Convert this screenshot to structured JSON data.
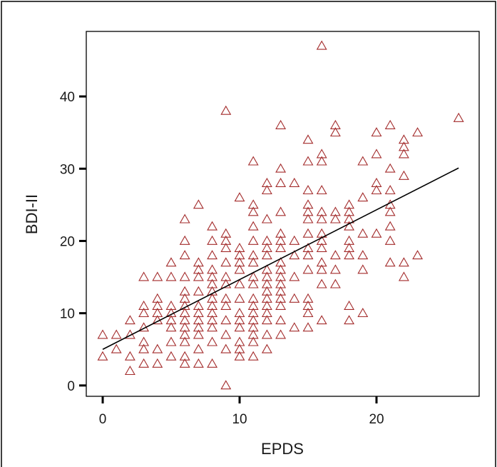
{
  "chart_data": {
    "type": "scatter",
    "title": "",
    "xlabel": "EPDS",
    "ylabel": "BDI-II",
    "xlim": [
      -1.2,
      27.5
    ],
    "ylim": [
      -1.5,
      49
    ],
    "x_ticks": [
      0,
      10,
      20
    ],
    "y_ticks": [
      0,
      10,
      20,
      30,
      40
    ],
    "grid": false,
    "legend": "none",
    "marker": "triangle-open",
    "marker_color": "#a32b2b",
    "fit_line": {
      "color": "#000000",
      "x": [
        0,
        26
      ],
      "y": [
        5,
        30.1
      ]
    },
    "points": [
      [
        0,
        7
      ],
      [
        0,
        4
      ],
      [
        1,
        7
      ],
      [
        1,
        5
      ],
      [
        2,
        9
      ],
      [
        2,
        7
      ],
      [
        2,
        4
      ],
      [
        2,
        2
      ],
      [
        3,
        15
      ],
      [
        3,
        11
      ],
      [
        3,
        10
      ],
      [
        3,
        8
      ],
      [
        3,
        6
      ],
      [
        3,
        5
      ],
      [
        3,
        3
      ],
      [
        4,
        15
      ],
      [
        4,
        12
      ],
      [
        4,
        11
      ],
      [
        4,
        10
      ],
      [
        4,
        9
      ],
      [
        4,
        5
      ],
      [
        4,
        3
      ],
      [
        5,
        17
      ],
      [
        5,
        15
      ],
      [
        5,
        11
      ],
      [
        5,
        10
      ],
      [
        5,
        9
      ],
      [
        5,
        8
      ],
      [
        5,
        6
      ],
      [
        5,
        4
      ],
      [
        6,
        23
      ],
      [
        6,
        20
      ],
      [
        6,
        18
      ],
      [
        6,
        15
      ],
      [
        6,
        13
      ],
      [
        6,
        12
      ],
      [
        6,
        11
      ],
      [
        6,
        10
      ],
      [
        6,
        9
      ],
      [
        6,
        8
      ],
      [
        6,
        7
      ],
      [
        6,
        6
      ],
      [
        6,
        4
      ],
      [
        6,
        3
      ],
      [
        7,
        25
      ],
      [
        7,
        17
      ],
      [
        7,
        16
      ],
      [
        7,
        15
      ],
      [
        7,
        13
      ],
      [
        7,
        11
      ],
      [
        7,
        10
      ],
      [
        7,
        9
      ],
      [
        7,
        8
      ],
      [
        7,
        7
      ],
      [
        7,
        5
      ],
      [
        7,
        3
      ],
      [
        8,
        22
      ],
      [
        8,
        20
      ],
      [
        8,
        18
      ],
      [
        8,
        16
      ],
      [
        8,
        15
      ],
      [
        8,
        14
      ],
      [
        8,
        13
      ],
      [
        8,
        12
      ],
      [
        8,
        11
      ],
      [
        8,
        10
      ],
      [
        8,
        9
      ],
      [
        8,
        8
      ],
      [
        8,
        6
      ],
      [
        8,
        3
      ],
      [
        9,
        38
      ],
      [
        9,
        21
      ],
      [
        9,
        20
      ],
      [
        9,
        19
      ],
      [
        9,
        17
      ],
      [
        9,
        15
      ],
      [
        9,
        14
      ],
      [
        9,
        12
      ],
      [
        9,
        11
      ],
      [
        9,
        9
      ],
      [
        9,
        7
      ],
      [
        9,
        5
      ],
      [
        9,
        0
      ],
      [
        10,
        26
      ],
      [
        10,
        19
      ],
      [
        10,
        18
      ],
      [
        10,
        17
      ],
      [
        10,
        16
      ],
      [
        10,
        14
      ],
      [
        10,
        12
      ],
      [
        10,
        10
      ],
      [
        10,
        9
      ],
      [
        10,
        8
      ],
      [
        10,
        6
      ],
      [
        10,
        5
      ],
      [
        10,
        4
      ],
      [
        11,
        31
      ],
      [
        11,
        25
      ],
      [
        11,
        24
      ],
      [
        11,
        22
      ],
      [
        11,
        20
      ],
      [
        11,
        18
      ],
      [
        11,
        17
      ],
      [
        11,
        15
      ],
      [
        11,
        14
      ],
      [
        11,
        12
      ],
      [
        11,
        11
      ],
      [
        11,
        10
      ],
      [
        11,
        9
      ],
      [
        11,
        8
      ],
      [
        11,
        7
      ],
      [
        11,
        6
      ],
      [
        11,
        4
      ],
      [
        12,
        28
      ],
      [
        12,
        27
      ],
      [
        12,
        23
      ],
      [
        12,
        20
      ],
      [
        12,
        19
      ],
      [
        12,
        18
      ],
      [
        12,
        16
      ],
      [
        12,
        15
      ],
      [
        12,
        14
      ],
      [
        12,
        13
      ],
      [
        12,
        12
      ],
      [
        12,
        11
      ],
      [
        12,
        10
      ],
      [
        12,
        9
      ],
      [
        12,
        7
      ],
      [
        12,
        5
      ],
      [
        13,
        36
      ],
      [
        13,
        30
      ],
      [
        13,
        28
      ],
      [
        13,
        24
      ],
      [
        13,
        21
      ],
      [
        13,
        20
      ],
      [
        13,
        19
      ],
      [
        13,
        17
      ],
      [
        13,
        16
      ],
      [
        13,
        15
      ],
      [
        13,
        14
      ],
      [
        13,
        13
      ],
      [
        13,
        12
      ],
      [
        13,
        11
      ],
      [
        13,
        9
      ],
      [
        13,
        7
      ],
      [
        14,
        28
      ],
      [
        14,
        20
      ],
      [
        14,
        18
      ],
      [
        14,
        15
      ],
      [
        14,
        12
      ],
      [
        14,
        8
      ],
      [
        15,
        34
      ],
      [
        15,
        31
      ],
      [
        15,
        27
      ],
      [
        15,
        25
      ],
      [
        15,
        24
      ],
      [
        15,
        23
      ],
      [
        15,
        21
      ],
      [
        15,
        19
      ],
      [
        15,
        18
      ],
      [
        15,
        16
      ],
      [
        15,
        12
      ],
      [
        15,
        11
      ],
      [
        15,
        10
      ],
      [
        15,
        8
      ],
      [
        16,
        47
      ],
      [
        16,
        32
      ],
      [
        16,
        31
      ],
      [
        16,
        27
      ],
      [
        16,
        24
      ],
      [
        16,
        23
      ],
      [
        16,
        21
      ],
      [
        16,
        20
      ],
      [
        16,
        19
      ],
      [
        16,
        17
      ],
      [
        16,
        16
      ],
      [
        16,
        14
      ],
      [
        16,
        9
      ],
      [
        17,
        36
      ],
      [
        17,
        35
      ],
      [
        17,
        24
      ],
      [
        17,
        23
      ],
      [
        17,
        18
      ],
      [
        17,
        16
      ],
      [
        17,
        14
      ],
      [
        18,
        25
      ],
      [
        18,
        24
      ],
      [
        18,
        23
      ],
      [
        18,
        22
      ],
      [
        18,
        20
      ],
      [
        18,
        19
      ],
      [
        18,
        18
      ],
      [
        18,
        11
      ],
      [
        18,
        9
      ],
      [
        19,
        31
      ],
      [
        19,
        26
      ],
      [
        19,
        21
      ],
      [
        19,
        18
      ],
      [
        19,
        16
      ],
      [
        19,
        10
      ],
      [
        20,
        35
      ],
      [
        20,
        32
      ],
      [
        20,
        28
      ],
      [
        20,
        27
      ],
      [
        20,
        21
      ],
      [
        21,
        36
      ],
      [
        21,
        30
      ],
      [
        21,
        27
      ],
      [
        21,
        25
      ],
      [
        21,
        24
      ],
      [
        21,
        22
      ],
      [
        21,
        20
      ],
      [
        21,
        17
      ],
      [
        22,
        34
      ],
      [
        22,
        33
      ],
      [
        22,
        32
      ],
      [
        22,
        29
      ],
      [
        22,
        17
      ],
      [
        22,
        15
      ],
      [
        23,
        35
      ],
      [
        23,
        18
      ],
      [
        26,
        37
      ]
    ]
  }
}
